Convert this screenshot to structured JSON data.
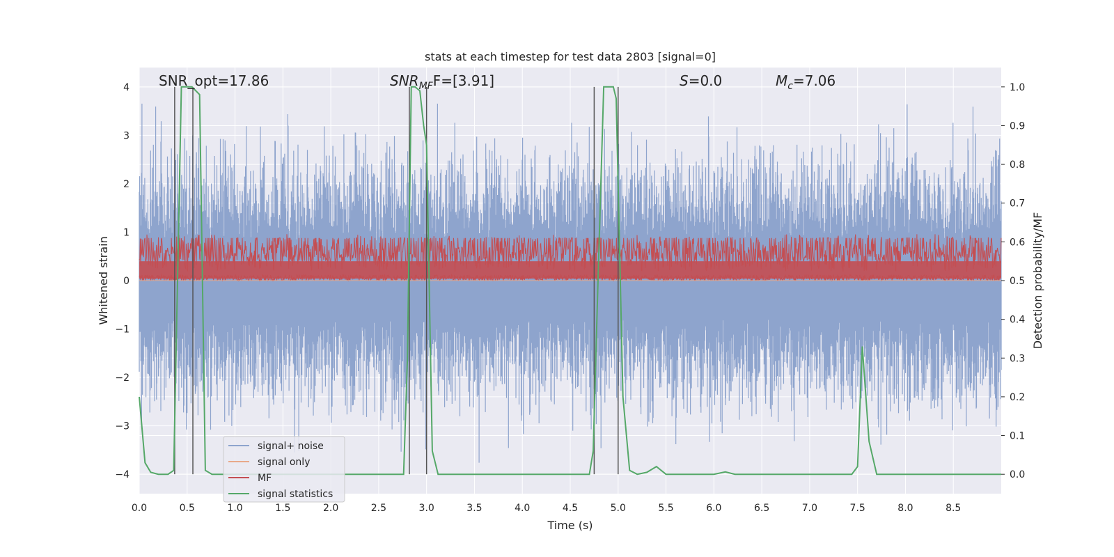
{
  "chart_data": {
    "type": "line",
    "title": "stats at each timestep for test data 2803 [signal=0]",
    "xlabel": "Time (s)",
    "ylabel": "Whitened strain",
    "y2label": "Detection probability/MF",
    "xlim": [
      0.0,
      9.0
    ],
    "ylim": [
      -4.4,
      4.4
    ],
    "y2lim": [
      -0.05,
      1.05
    ],
    "xticks": [
      "0.0",
      "0.5",
      "1.0",
      "1.5",
      "2.0",
      "2.5",
      "3.0",
      "3.5",
      "4.0",
      "4.5",
      "5.0",
      "5.5",
      "6.0",
      "6.5",
      "7.0",
      "7.5",
      "8.0",
      "8.5"
    ],
    "yticks": [
      "4",
      "3",
      "2",
      "1",
      "0",
      "−1",
      "−2",
      "−3",
      "−4"
    ],
    "y2ticks": [
      "1.0",
      "0.9",
      "0.8",
      "0.7",
      "0.6",
      "0.5",
      "0.4",
      "0.3",
      "0.2",
      "0.1",
      "0.0"
    ],
    "grid": true,
    "legend_position": "lower-left",
    "annotations": {
      "snr_opt": "SNR_opt=17.86",
      "snr_mf_prefix": "SNR",
      "snr_mf_sub": "MF",
      "snr_mf_value": "F=[3.91]",
      "s_symbol": "S",
      "s_value": "=0.0",
      "mc_symbol": "M",
      "mc_sub": "c",
      "mc_value": "=7.06"
    },
    "detection_windows": [
      [
        0.37,
        0.56
      ],
      [
        2.82,
        3.0
      ],
      [
        4.75,
        5.0
      ]
    ],
    "series": [
      {
        "name": "signal+ noise",
        "color": "#8ea4cd",
        "amplitude_envelope": [
          -4.0,
          4.0
        ]
      },
      {
        "name": "signal only",
        "color": "#e8a98a",
        "values": "flat at 0"
      },
      {
        "name": "MF",
        "color": "#c44e52",
        "range": [
          0.0,
          0.95
        ]
      },
      {
        "name": "signal statistics",
        "color": "#55a868",
        "x": [
          0.0,
          0.06,
          0.12,
          0.2,
          0.3,
          0.36,
          0.4,
          0.44,
          0.55,
          0.63,
          0.69,
          0.76,
          0.9,
          1.5,
          2.0,
          2.5,
          2.76,
          2.8,
          2.84,
          2.88,
          2.93,
          2.97,
          3.0,
          3.06,
          3.12,
          3.4,
          4.0,
          4.5,
          4.7,
          4.74,
          4.79,
          4.85,
          4.9,
          4.95,
          4.98,
          5.05,
          5.12,
          5.2,
          5.3,
          5.4,
          5.5,
          5.6,
          6.0,
          6.12,
          6.22,
          6.5,
          7.0,
          7.44,
          7.5,
          7.55,
          7.62,
          7.7,
          8.0,
          8.5,
          9.0
        ],
        "values": [
          0.2,
          0.03,
          0.005,
          0.0,
          0.0,
          0.01,
          0.5,
          1.0,
          1.0,
          0.98,
          0.01,
          0.0,
          0.0,
          0.0,
          0.0,
          0.0,
          0.0,
          0.3,
          1.0,
          1.0,
          0.99,
          0.9,
          0.85,
          0.06,
          0.0,
          0.0,
          0.0,
          0.0,
          0.0,
          0.06,
          0.5,
          1.0,
          1.0,
          1.0,
          0.97,
          0.2,
          0.01,
          0.0,
          0.005,
          0.02,
          0.0,
          0.0,
          0.0,
          0.006,
          0.0,
          0.0,
          0.0,
          0.0,
          0.02,
          0.33,
          0.085,
          0.0,
          0.0,
          0.0,
          0.0
        ]
      }
    ]
  }
}
